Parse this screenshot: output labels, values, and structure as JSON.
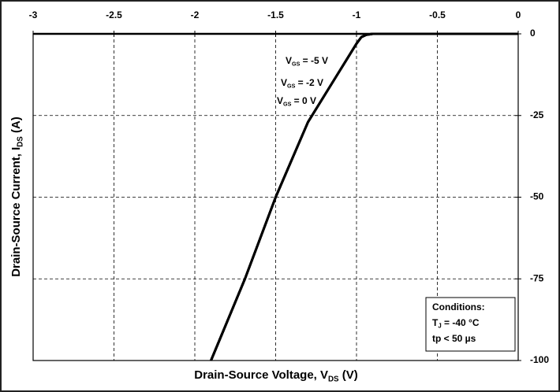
{
  "chart_data": {
    "type": "line",
    "x_label": {
      "text": "Drain-Source Voltage, V",
      "sub": "DS",
      "end": " (V)"
    },
    "y_label": {
      "text": "Drain-Source Current, I",
      "sub": "DS",
      "end": " (A)"
    },
    "x": [
      -1.9,
      -1.69,
      -1.5,
      -1.3,
      -1.15,
      -1.05,
      -1.0,
      -0.97,
      -0.94,
      -0.9,
      -0.85,
      0
    ],
    "series": [
      {
        "color": "#000000",
        "values": [
          -100,
          -75,
          -50,
          -27,
          -15,
          -7,
          -3,
          -1,
          -0.3,
          0,
          0,
          0
        ]
      },
      {
        "color": "#000000",
        "values": [
          -100,
          -75,
          -50,
          -27,
          -15,
          -7,
          -3,
          -1,
          -0.3,
          0,
          0,
          0
        ]
      },
      {
        "color": "#000000",
        "values": [
          -100,
          -75,
          -50,
          -27,
          -15,
          -7,
          -3,
          -1,
          -0.3,
          0,
          0,
          0
        ]
      }
    ],
    "annotations": [
      {
        "text": "V",
        "sub": "GS",
        "end": " = -5 V"
      },
      {
        "text": "V",
        "sub": "GS",
        "end": " = -2 V"
      },
      {
        "text": "V",
        "sub": "GS",
        "end": " = 0 V"
      }
    ],
    "conditions": [
      {
        "text": "Conditions:"
      },
      {
        "text": "T",
        "sub": "J",
        "end": " = -40 °C"
      },
      {
        "text": "tp < 50 µs"
      }
    ],
    "xlim": [
      -3,
      0
    ],
    "xticks": [
      -3,
      -2.5,
      -2,
      -1.5,
      -1,
      -0.5,
      0
    ],
    "ylim": [
      -100,
      0
    ],
    "yticks": [
      0,
      -25,
      -50,
      -75,
      -100
    ],
    "grid": true
  }
}
